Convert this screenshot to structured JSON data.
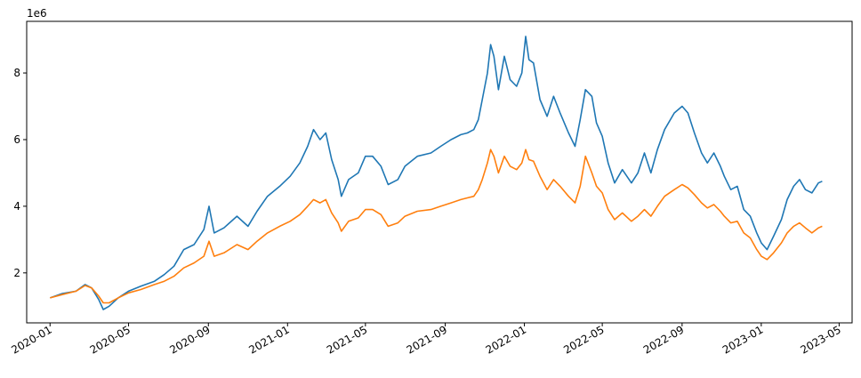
{
  "chart_data": {
    "type": "line",
    "title": "",
    "xlabel": "",
    "ylabel": "",
    "y_offset_label": "1e6",
    "xlim": [
      "2019-11-26",
      "2023-05-21"
    ],
    "ylim": [
      0.5,
      9.55
    ],
    "y_ticks": [
      2,
      4,
      6,
      8
    ],
    "x_ticks": [
      "2020-01",
      "2020-05",
      "2020-09",
      "2021-01",
      "2021-05",
      "2021-09",
      "2022-01",
      "2022-05",
      "2022-09",
      "2023-01",
      "2023-05"
    ],
    "grid": false,
    "legend": null,
    "series": [
      {
        "color": "#1f77b4",
        "points": [
          [
            "2020-01-01",
            1.25
          ],
          [
            "2020-01-20",
            1.38
          ],
          [
            "2020-02-10",
            1.45
          ],
          [
            "2020-02-24",
            1.65
          ],
          [
            "2020-03-05",
            1.55
          ],
          [
            "2020-03-16",
            1.2
          ],
          [
            "2020-03-23",
            0.9
          ],
          [
            "2020-04-01",
            1.0
          ],
          [
            "2020-04-15",
            1.25
          ],
          [
            "2020-05-01",
            1.45
          ],
          [
            "2020-05-20",
            1.6
          ],
          [
            "2020-06-10",
            1.75
          ],
          [
            "2020-06-25",
            1.95
          ],
          [
            "2020-07-10",
            2.2
          ],
          [
            "2020-07-25",
            2.7
          ],
          [
            "2020-08-10",
            2.85
          ],
          [
            "2020-08-25",
            3.3
          ],
          [
            "2020-09-02",
            4.0
          ],
          [
            "2020-09-10",
            3.2
          ],
          [
            "2020-09-25",
            3.35
          ],
          [
            "2020-10-15",
            3.7
          ],
          [
            "2020-11-01",
            3.4
          ],
          [
            "2020-11-15",
            3.85
          ],
          [
            "2020-12-01",
            4.3
          ],
          [
            "2020-12-20",
            4.6
          ],
          [
            "2021-01-05",
            4.9
          ],
          [
            "2021-01-20",
            5.3
          ],
          [
            "2021-02-01",
            5.8
          ],
          [
            "2021-02-10",
            6.3
          ],
          [
            "2021-02-20",
            6.0
          ],
          [
            "2021-03-01",
            6.2
          ],
          [
            "2021-03-10",
            5.4
          ],
          [
            "2021-03-20",
            4.8
          ],
          [
            "2021-03-25",
            4.3
          ],
          [
            "2021-04-05",
            4.8
          ],
          [
            "2021-04-20",
            5.0
          ],
          [
            "2021-05-01",
            5.5
          ],
          [
            "2021-05-12",
            5.5
          ],
          [
            "2021-05-25",
            5.2
          ],
          [
            "2021-06-05",
            4.65
          ],
          [
            "2021-06-20",
            4.8
          ],
          [
            "2021-07-01",
            5.2
          ],
          [
            "2021-07-20",
            5.5
          ],
          [
            "2021-08-10",
            5.6
          ],
          [
            "2021-08-25",
            5.8
          ],
          [
            "2021-09-10",
            6.0
          ],
          [
            "2021-09-25",
            6.15
          ],
          [
            "2021-10-05",
            6.2
          ],
          [
            "2021-10-15",
            6.3
          ],
          [
            "2021-10-22",
            6.6
          ],
          [
            "2021-10-28",
            7.2
          ],
          [
            "2021-11-05",
            8.0
          ],
          [
            "2021-11-10",
            8.85
          ],
          [
            "2021-11-15",
            8.5
          ],
          [
            "2021-11-22",
            7.5
          ],
          [
            "2021-12-01",
            8.5
          ],
          [
            "2021-12-10",
            7.8
          ],
          [
            "2021-12-20",
            7.6
          ],
          [
            "2021-12-28",
            8.0
          ],
          [
            "2022-01-03",
            9.1
          ],
          [
            "2022-01-08",
            8.4
          ],
          [
            "2022-01-15",
            8.3
          ],
          [
            "2022-01-25",
            7.2
          ],
          [
            "2022-02-05",
            6.7
          ],
          [
            "2022-02-15",
            7.3
          ],
          [
            "2022-02-25",
            6.8
          ],
          [
            "2022-03-10",
            6.2
          ],
          [
            "2022-03-20",
            5.8
          ],
          [
            "2022-03-28",
            6.6
          ],
          [
            "2022-04-05",
            7.5
          ],
          [
            "2022-04-15",
            7.3
          ],
          [
            "2022-04-22",
            6.5
          ],
          [
            "2022-05-01",
            6.1
          ],
          [
            "2022-05-10",
            5.3
          ],
          [
            "2022-05-20",
            4.7
          ],
          [
            "2022-06-01",
            5.1
          ],
          [
            "2022-06-15",
            4.7
          ],
          [
            "2022-06-25",
            5.0
          ],
          [
            "2022-07-05",
            5.6
          ],
          [
            "2022-07-15",
            5.0
          ],
          [
            "2022-07-25",
            5.7
          ],
          [
            "2022-08-05",
            6.3
          ],
          [
            "2022-08-20",
            6.8
          ],
          [
            "2022-09-01",
            7.0
          ],
          [
            "2022-09-10",
            6.8
          ],
          [
            "2022-09-20",
            6.2
          ],
          [
            "2022-10-01",
            5.6
          ],
          [
            "2022-10-10",
            5.3
          ],
          [
            "2022-10-20",
            5.6
          ],
          [
            "2022-10-30",
            5.2
          ],
          [
            "2022-11-05",
            4.9
          ],
          [
            "2022-11-15",
            4.5
          ],
          [
            "2022-11-25",
            4.6
          ],
          [
            "2022-12-05",
            3.9
          ],
          [
            "2022-12-15",
            3.7
          ],
          [
            "2022-12-25",
            3.2
          ],
          [
            "2023-01-01",
            2.9
          ],
          [
            "2023-01-10",
            2.7
          ],
          [
            "2023-01-20",
            3.1
          ],
          [
            "2023-02-01",
            3.6
          ],
          [
            "2023-02-10",
            4.2
          ],
          [
            "2023-02-20",
            4.6
          ],
          [
            "2023-03-01",
            4.8
          ],
          [
            "2023-03-10",
            4.5
          ],
          [
            "2023-03-20",
            4.4
          ],
          [
            "2023-03-30",
            4.7
          ],
          [
            "2023-04-05",
            4.75
          ]
        ]
      },
      {
        "color": "#ff7f0e",
        "points": [
          [
            "2020-01-01",
            1.25
          ],
          [
            "2020-01-20",
            1.35
          ],
          [
            "2020-02-10",
            1.45
          ],
          [
            "2020-02-24",
            1.62
          ],
          [
            "2020-03-05",
            1.55
          ],
          [
            "2020-03-16",
            1.3
          ],
          [
            "2020-03-23",
            1.1
          ],
          [
            "2020-04-01",
            1.1
          ],
          [
            "2020-04-15",
            1.25
          ],
          [
            "2020-05-01",
            1.4
          ],
          [
            "2020-05-20",
            1.5
          ],
          [
            "2020-06-10",
            1.65
          ],
          [
            "2020-06-25",
            1.75
          ],
          [
            "2020-07-10",
            1.9
          ],
          [
            "2020-07-25",
            2.15
          ],
          [
            "2020-08-10",
            2.3
          ],
          [
            "2020-08-25",
            2.5
          ],
          [
            "2020-09-02",
            2.95
          ],
          [
            "2020-09-10",
            2.5
          ],
          [
            "2020-09-25",
            2.6
          ],
          [
            "2020-10-15",
            2.85
          ],
          [
            "2020-11-01",
            2.7
          ],
          [
            "2020-11-15",
            2.95
          ],
          [
            "2020-12-01",
            3.2
          ],
          [
            "2020-12-20",
            3.4
          ],
          [
            "2021-01-05",
            3.55
          ],
          [
            "2021-01-20",
            3.75
          ],
          [
            "2021-02-01",
            4.0
          ],
          [
            "2021-02-10",
            4.2
          ],
          [
            "2021-02-20",
            4.1
          ],
          [
            "2021-03-01",
            4.2
          ],
          [
            "2021-03-10",
            3.8
          ],
          [
            "2021-03-20",
            3.5
          ],
          [
            "2021-03-25",
            3.25
          ],
          [
            "2021-04-05",
            3.55
          ],
          [
            "2021-04-20",
            3.65
          ],
          [
            "2021-05-01",
            3.9
          ],
          [
            "2021-05-12",
            3.9
          ],
          [
            "2021-05-25",
            3.75
          ],
          [
            "2021-06-05",
            3.4
          ],
          [
            "2021-06-20",
            3.5
          ],
          [
            "2021-07-01",
            3.7
          ],
          [
            "2021-07-20",
            3.85
          ],
          [
            "2021-08-10",
            3.9
          ],
          [
            "2021-08-25",
            4.0
          ],
          [
            "2021-09-10",
            4.1
          ],
          [
            "2021-09-25",
            4.2
          ],
          [
            "2021-10-05",
            4.25
          ],
          [
            "2021-10-15",
            4.3
          ],
          [
            "2021-10-22",
            4.5
          ],
          [
            "2021-10-28",
            4.8
          ],
          [
            "2021-11-05",
            5.3
          ],
          [
            "2021-11-10",
            5.7
          ],
          [
            "2021-11-15",
            5.5
          ],
          [
            "2021-11-22",
            5.0
          ],
          [
            "2021-12-01",
            5.5
          ],
          [
            "2021-12-10",
            5.2
          ],
          [
            "2021-12-20",
            5.1
          ],
          [
            "2021-12-28",
            5.3
          ],
          [
            "2022-01-03",
            5.7
          ],
          [
            "2022-01-08",
            5.4
          ],
          [
            "2022-01-15",
            5.35
          ],
          [
            "2022-01-25",
            4.9
          ],
          [
            "2022-02-05",
            4.5
          ],
          [
            "2022-02-15",
            4.8
          ],
          [
            "2022-02-25",
            4.6
          ],
          [
            "2022-03-10",
            4.3
          ],
          [
            "2022-03-20",
            4.1
          ],
          [
            "2022-03-28",
            4.6
          ],
          [
            "2022-04-05",
            5.5
          ],
          [
            "2022-04-15",
            5.0
          ],
          [
            "2022-04-22",
            4.6
          ],
          [
            "2022-05-01",
            4.4
          ],
          [
            "2022-05-10",
            3.9
          ],
          [
            "2022-05-20",
            3.6
          ],
          [
            "2022-06-01",
            3.8
          ],
          [
            "2022-06-15",
            3.55
          ],
          [
            "2022-06-25",
            3.7
          ],
          [
            "2022-07-05",
            3.9
          ],
          [
            "2022-07-15",
            3.7
          ],
          [
            "2022-07-25",
            4.0
          ],
          [
            "2022-08-05",
            4.3
          ],
          [
            "2022-08-20",
            4.5
          ],
          [
            "2022-09-01",
            4.65
          ],
          [
            "2022-09-10",
            4.55
          ],
          [
            "2022-09-20",
            4.35
          ],
          [
            "2022-10-01",
            4.1
          ],
          [
            "2022-10-10",
            3.95
          ],
          [
            "2022-10-20",
            4.05
          ],
          [
            "2022-10-30",
            3.85
          ],
          [
            "2022-11-05",
            3.7
          ],
          [
            "2022-11-15",
            3.5
          ],
          [
            "2022-11-25",
            3.55
          ],
          [
            "2022-12-05",
            3.2
          ],
          [
            "2022-12-15",
            3.05
          ],
          [
            "2022-12-25",
            2.7
          ],
          [
            "2023-01-01",
            2.5
          ],
          [
            "2023-01-10",
            2.4
          ],
          [
            "2023-01-20",
            2.6
          ],
          [
            "2023-02-01",
            2.9
          ],
          [
            "2023-02-10",
            3.2
          ],
          [
            "2023-02-20",
            3.4
          ],
          [
            "2023-03-01",
            3.5
          ],
          [
            "2023-03-10",
            3.35
          ],
          [
            "2023-03-20",
            3.2
          ],
          [
            "2023-03-30",
            3.35
          ],
          [
            "2023-04-05",
            3.4
          ]
        ]
      }
    ]
  }
}
